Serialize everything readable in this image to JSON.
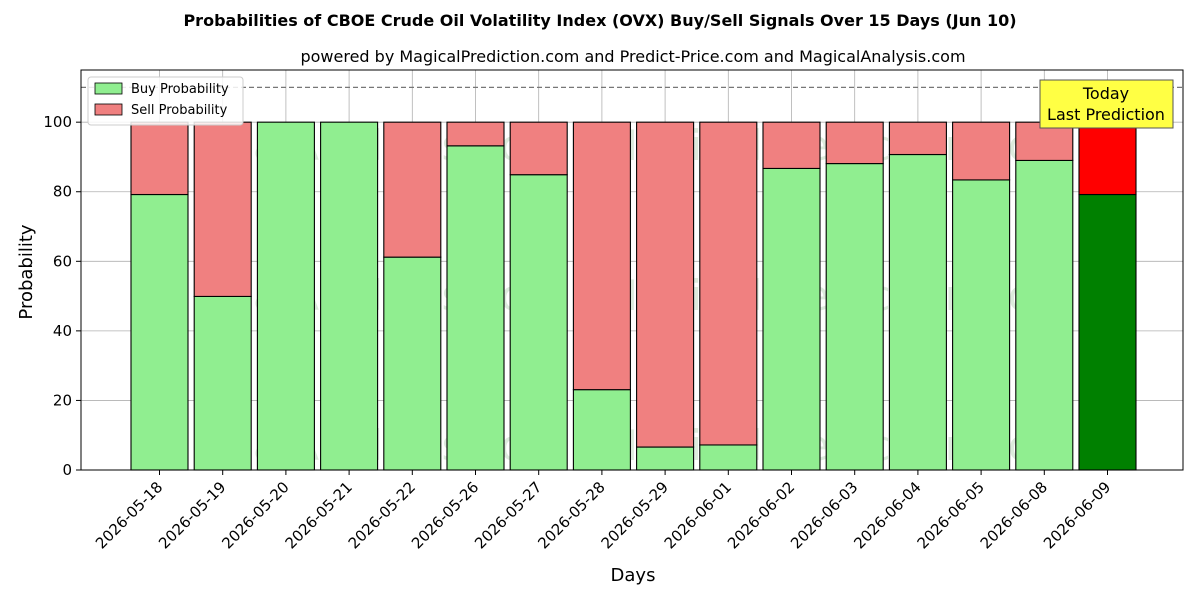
{
  "chart_data": {
    "type": "bar",
    "stacked": true,
    "title": "Probabilities of CBOE Crude Oil Volatility Index (OVX) Buy/Sell Signals Over 15 Days (Jun 10)",
    "subtitle": "powered by MagicalPrediction.com and Predict-Price.com and MagicalAnalysis.com",
    "xlabel": "Days",
    "ylabel": "Probability",
    "ylim": [
      0,
      115
    ],
    "yticks": [
      0,
      20,
      40,
      60,
      80,
      100
    ],
    "reference_line": 110,
    "grid": true,
    "legend_position": "top-left",
    "categories": [
      "2026-05-18",
      "2026-05-19",
      "2026-05-20",
      "2026-05-21",
      "2026-05-22",
      "2026-05-26",
      "2026-05-27",
      "2026-05-28",
      "2026-05-29",
      "2026-06-01",
      "2026-06-02",
      "2026-06-03",
      "2026-06-04",
      "2026-06-05",
      "2026-06-08",
      "2026-06-09"
    ],
    "series": [
      {
        "name": "Buy Probability",
        "color": "#90ee90",
        "values": [
          79.2,
          49.9,
          100,
          100,
          61.2,
          93.2,
          84.9,
          23.1,
          6.6,
          7.2,
          86.7,
          88.1,
          90.7,
          83.4,
          89.0,
          79.2
        ]
      },
      {
        "name": "Sell Probability",
        "color": "#f08080",
        "values": [
          20.8,
          50.1,
          0,
          0,
          38.8,
          6.8,
          15.1,
          76.9,
          93.4,
          92.8,
          13.3,
          11.9,
          9.3,
          16.6,
          11.0,
          20.8
        ]
      }
    ],
    "highlight": {
      "index": 15,
      "buy_color": "#008000",
      "sell_color": "#ff0000"
    },
    "annotation": {
      "line1": "Today",
      "line2": "Last Prediction",
      "background": "#ffff44"
    },
    "watermarks": [
      "MagicalAnalysis.com",
      "MagicalPrediction.com"
    ]
  }
}
